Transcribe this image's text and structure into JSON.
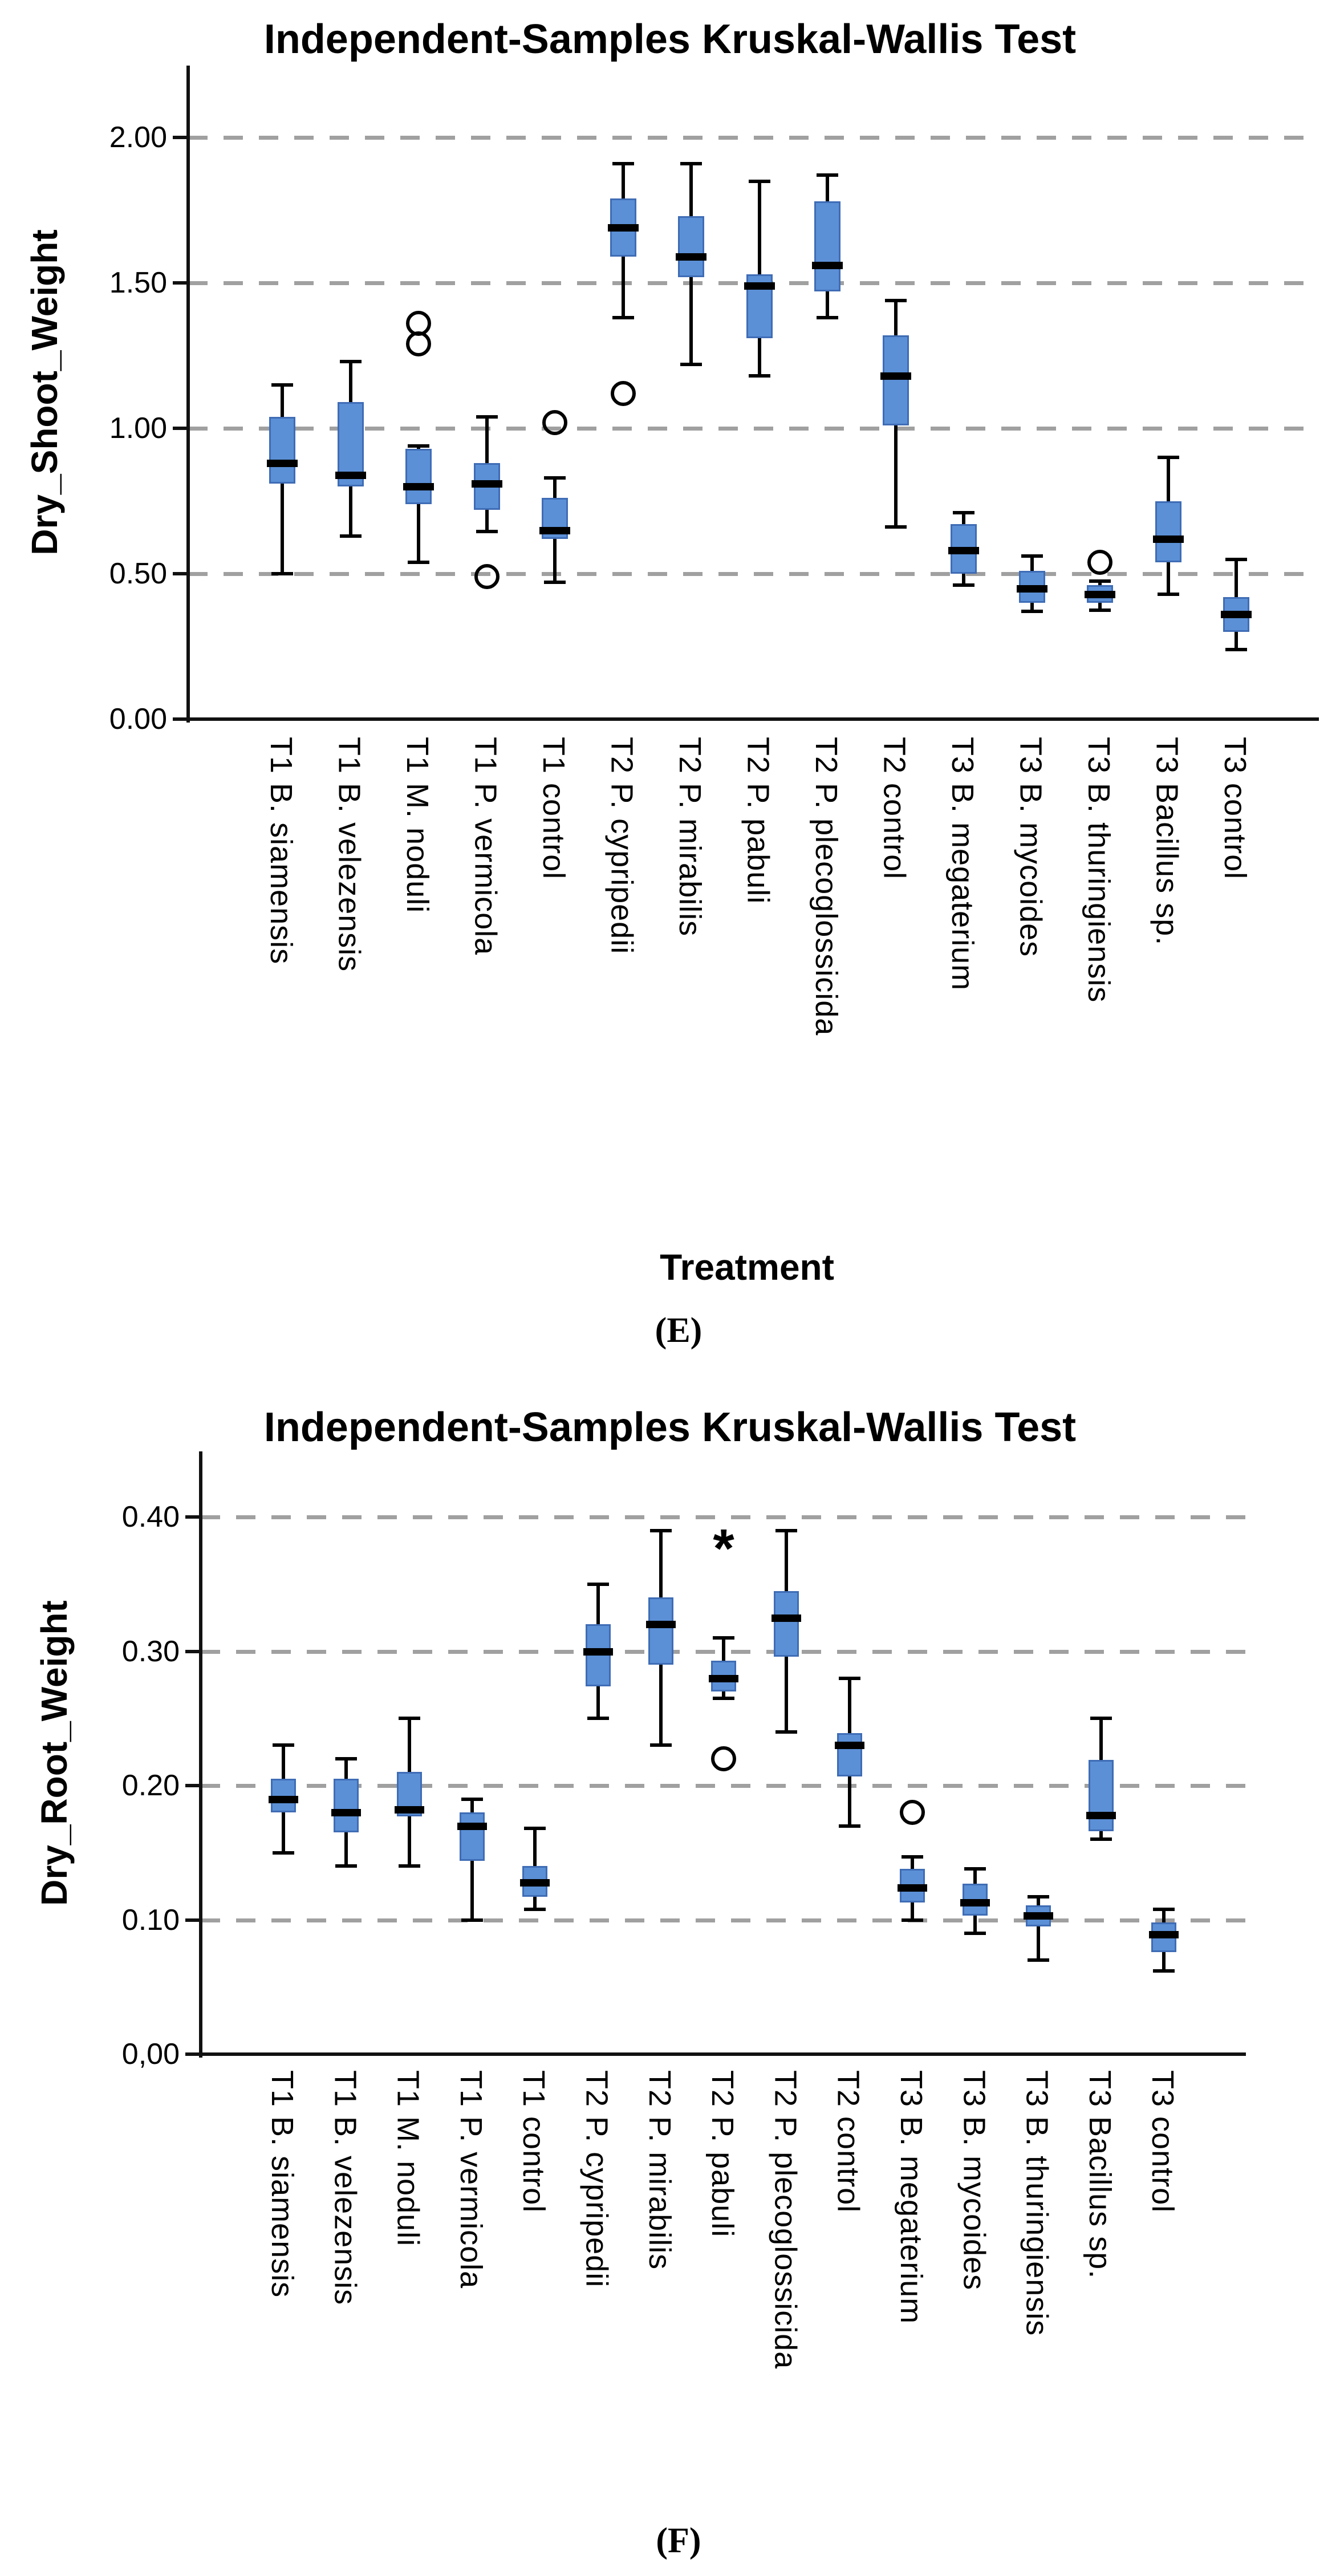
{
  "page": {
    "background": "#ffffff"
  },
  "chart_data": [
    {
      "type": "boxplot",
      "panel": "E",
      "title": "Independent-Samples Kruskal-Wallis Test",
      "ylabel": "Dry_Shoot_Weight",
      "xlabel": "Treatment",
      "panel_label": "(E)",
      "ylim": [
        0,
        2.24
      ],
      "grid_on": true,
      "yticks": [
        {
          "label": "0.00",
          "value": 0.0
        },
        {
          "label": "0.50",
          "value": 0.5
        },
        {
          "label": "1.00",
          "value": 1.0
        },
        {
          "label": "1.50",
          "value": 1.5
        },
        {
          "label": "2.00",
          "value": 2.0
        }
      ],
      "grid_values": [
        0.5,
        1.0,
        1.5,
        2.0
      ],
      "categories": [
        "T1 B. siamensis",
        "T1 B. velezensis",
        "T1 M. noduli",
        "T1 P. vermicola",
        "T1 control",
        "T2 P. cypripedii",
        "T2 P. mirabilis",
        "T2 P. pabuli",
        "T2 P. plecoglossicida",
        "T2 control",
        "T3 B. megaterium",
        "T3 B. mycoides",
        "T3 B. thuringiensis",
        "T3 Bacillus sp.",
        "T3 control"
      ],
      "boxes": [
        {
          "low": 0.5,
          "q1": 0.81,
          "median": 0.88,
          "q3": 1.04,
          "high": 1.15,
          "outliers": []
        },
        {
          "low": 0.63,
          "q1": 0.8,
          "median": 0.84,
          "q3": 1.09,
          "high": 1.23,
          "outliers": []
        },
        {
          "low": 0.54,
          "q1": 0.74,
          "median": 0.8,
          "q3": 0.93,
          "high": 0.94,
          "outliers": [
            {
              "value": 1.29,
              "marker": "circle"
            },
            {
              "value": 1.36,
              "marker": "circle"
            }
          ]
        },
        {
          "low": 0.645,
          "q1": 0.72,
          "median": 0.81,
          "q3": 0.88,
          "high": 1.04,
          "outliers": [
            {
              "value": 0.49,
              "marker": "circle"
            }
          ]
        },
        {
          "low": 0.47,
          "q1": 0.62,
          "median": 0.65,
          "q3": 0.76,
          "high": 0.83,
          "outliers": [
            {
              "value": 1.02,
              "marker": "circle"
            }
          ]
        },
        {
          "low": 1.38,
          "q1": 1.59,
          "median": 1.69,
          "q3": 1.79,
          "high": 1.91,
          "outliers": [
            {
              "value": 1.12,
              "marker": "circle"
            }
          ]
        },
        {
          "low": 1.22,
          "q1": 1.52,
          "median": 1.59,
          "q3": 1.73,
          "high": 1.91,
          "outliers": []
        },
        {
          "low": 1.18,
          "q1": 1.31,
          "median": 1.49,
          "q3": 1.53,
          "high": 1.85,
          "outliers": []
        },
        {
          "low": 1.38,
          "q1": 1.47,
          "median": 1.56,
          "q3": 1.78,
          "high": 1.87,
          "outliers": []
        },
        {
          "low": 0.66,
          "q1": 1.01,
          "median": 1.18,
          "q3": 1.32,
          "high": 1.44,
          "outliers": []
        },
        {
          "low": 0.46,
          "q1": 0.5,
          "median": 0.58,
          "q3": 0.67,
          "high": 0.71,
          "outliers": []
        },
        {
          "low": 0.37,
          "q1": 0.4,
          "median": 0.45,
          "q3": 0.51,
          "high": 0.56,
          "outliers": []
        },
        {
          "low": 0.375,
          "q1": 0.4,
          "median": 0.43,
          "q3": 0.46,
          "high": 0.475,
          "outliers": [
            {
              "value": 0.54,
              "marker": "circle"
            }
          ]
        },
        {
          "low": 0.43,
          "q1": 0.54,
          "median": 0.62,
          "q3": 0.75,
          "high": 0.9,
          "outliers": []
        },
        {
          "low": 0.24,
          "q1": 0.3,
          "median": 0.36,
          "q3": 0.42,
          "high": 0.55,
          "outliers": []
        }
      ],
      "colors": {
        "box_fill": "#5b90d6",
        "box_border": "#3f6cb5",
        "median": "#000000",
        "whisker": "#000000",
        "gridline": "#a0a0a0",
        "axis": "#111111"
      }
    },
    {
      "type": "boxplot",
      "panel": "F",
      "title": "Independent-Samples Kruskal-Wallis Test",
      "ylabel": "Dry_Root_Weight",
      "xlabel": "",
      "panel_label": "(F)",
      "ylim": [
        0,
        0.45
      ],
      "grid_on": true,
      "yticks": [
        {
          "label": "0,00",
          "value": 0.0
        },
        {
          "label": "0.10",
          "value": 0.1
        },
        {
          "label": "0.20",
          "value": 0.2
        },
        {
          "label": "0.30",
          "value": 0.3
        },
        {
          "label": "0.40",
          "value": 0.4
        }
      ],
      "grid_values": [
        0.1,
        0.2,
        0.3,
        0.4
      ],
      "categories": [
        "T1 B. siamensis",
        "T1 B. velezensis",
        "T1 M. noduli",
        "T1 P. vermicola",
        "T1 control",
        "T2 P. cypripedii",
        "T2 P. mirabilis",
        "T2 P. pabuli",
        "T2 P. plecoglossicida",
        "T2 control",
        "T3 B. megaterium",
        "T3 B. mycoides",
        "T3 B. thuringiensis",
        "T3 Bacillus sp.",
        "T3 control"
      ],
      "boxes": [
        {
          "low": 0.15,
          "q1": 0.18,
          "median": 0.19,
          "q3": 0.205,
          "high": 0.23,
          "outliers": []
        },
        {
          "low": 0.14,
          "q1": 0.165,
          "median": 0.18,
          "q3": 0.205,
          "high": 0.22,
          "outliers": []
        },
        {
          "low": 0.14,
          "q1": 0.177,
          "median": 0.182,
          "q3": 0.21,
          "high": 0.25,
          "outliers": []
        },
        {
          "low": 0.1,
          "q1": 0.144,
          "median": 0.17,
          "q3": 0.18,
          "high": 0.19,
          "outliers": []
        },
        {
          "low": 0.108,
          "q1": 0.117,
          "median": 0.128,
          "q3": 0.14,
          "high": 0.168,
          "outliers": []
        },
        {
          "low": 0.25,
          "q1": 0.274,
          "median": 0.3,
          "q3": 0.32,
          "high": 0.35,
          "outliers": []
        },
        {
          "low": 0.23,
          "q1": 0.29,
          "median": 0.32,
          "q3": 0.34,
          "high": 0.39,
          "outliers": []
        },
        {
          "low": 0.265,
          "q1": 0.27,
          "median": 0.28,
          "q3": 0.293,
          "high": 0.31,
          "outliers": [
            {
              "value": 0.38,
              "marker": "asterisk"
            },
            {
              "value": 0.22,
              "marker": "circle"
            }
          ]
        },
        {
          "low": 0.24,
          "q1": 0.296,
          "median": 0.325,
          "q3": 0.345,
          "high": 0.39,
          "outliers": []
        },
        {
          "low": 0.17,
          "q1": 0.207,
          "median": 0.23,
          "q3": 0.239,
          "high": 0.28,
          "outliers": []
        },
        {
          "low": 0.1,
          "q1": 0.113,
          "median": 0.124,
          "q3": 0.138,
          "high": 0.147,
          "outliers": [
            {
              "value": 0.18,
              "marker": "circle"
            }
          ]
        },
        {
          "low": 0.09,
          "q1": 0.103,
          "median": 0.113,
          "q3": 0.127,
          "high": 0.138,
          "outliers": []
        },
        {
          "low": 0.07,
          "q1": 0.095,
          "median": 0.103,
          "q3": 0.111,
          "high": 0.117,
          "outliers": []
        },
        {
          "low": 0.16,
          "q1": 0.166,
          "median": 0.178,
          "q3": 0.219,
          "high": 0.25,
          "outliers": []
        },
        {
          "low": 0.062,
          "q1": 0.076,
          "median": 0.089,
          "q3": 0.098,
          "high": 0.108,
          "outliers": []
        }
      ],
      "colors": {
        "box_fill": "#5b90d6",
        "box_border": "#3f6cb5",
        "median": "#000000",
        "whisker": "#000000",
        "gridline": "#a0a0a0",
        "axis": "#111111"
      }
    }
  ]
}
